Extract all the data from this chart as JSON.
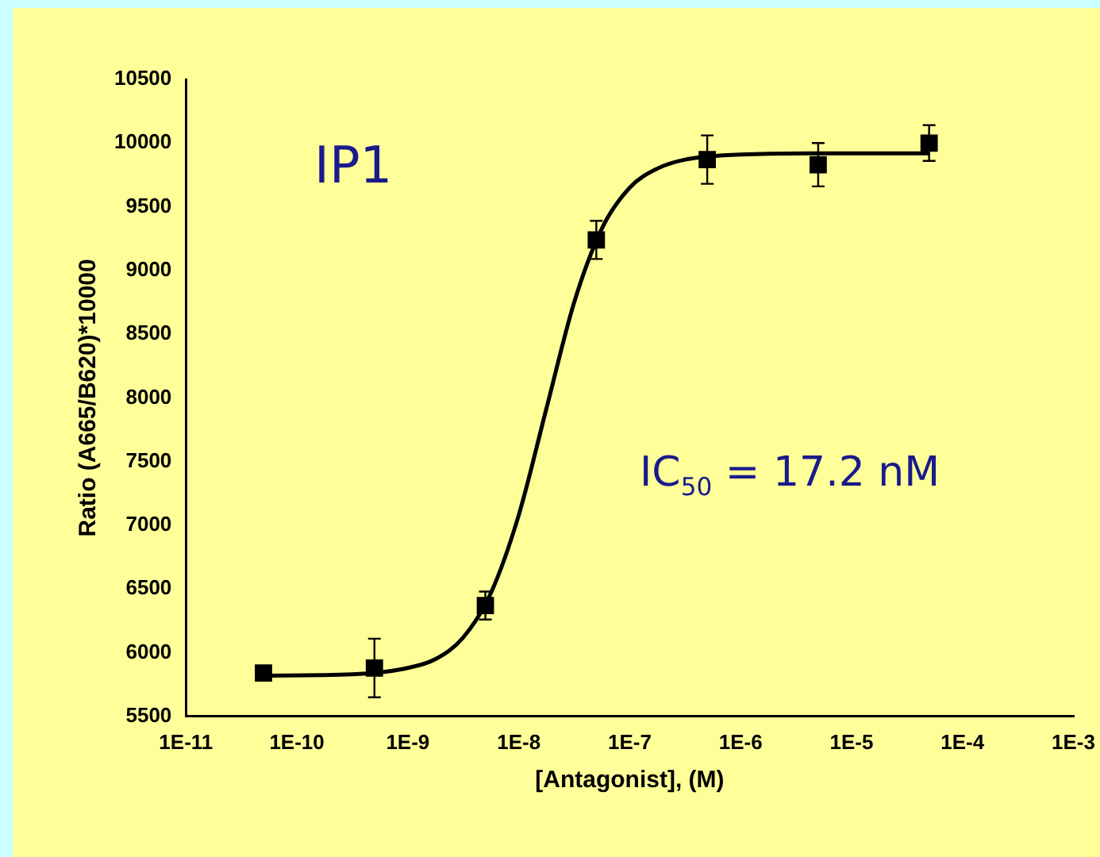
{
  "chart_data": {
    "type": "scatter",
    "xlabel": "[Antagonist], (M)",
    "ylabel": "Ratio (A665/B620)*10000",
    "annotations": [
      "IP1",
      "IC$_{50}$ = 17.2 nM"
    ],
    "log": "x",
    "grid": false,
    "legend": false,
    "marker": "square",
    "xlim": [
      1e-11,
      0.001
    ],
    "xticks": [
      {
        "value": 1e-11,
        "label": "1E-11"
      },
      {
        "value": 1e-10,
        "label": "1E-10"
      },
      {
        "value": 1e-09,
        "label": "1E-9"
      },
      {
        "value": 1e-08,
        "label": "1E-8"
      },
      {
        "value": 1e-07,
        "label": "1E-7"
      },
      {
        "value": 1e-06,
        "label": "1E-6"
      },
      {
        "value": 1e-05,
        "label": "1E-5"
      },
      {
        "value": 0.0001,
        "label": "1E-4"
      },
      {
        "value": 0.001,
        "label": "1E-3"
      }
    ],
    "ylim": [
      5500,
      10500
    ],
    "yticks": [
      5500,
      6000,
      6500,
      7000,
      7500,
      8000,
      8500,
      9000,
      9500,
      10000,
      10500
    ],
    "series": [
      {
        "color": "#000000",
        "x": [
          5e-11,
          5e-10,
          5e-09,
          5e-08,
          5e-07,
          5e-06,
          5e-05
        ],
        "values": [
          5840,
          5880,
          6370,
          9240,
          9870,
          9830,
          10000
        ],
        "errors": [
          null,
          230,
          110,
          150,
          190,
          170,
          140
        ]
      },
      {
        "type": "line",
        "color": "#000000",
        "marker": "none",
        "line_style": "solid",
        "x": [
          5e-11,
          3.16e-10,
          1e-09,
          1.78e-09,
          3.16e-09,
          5.62e-09,
          1e-08,
          1.78e-08,
          3.16e-08,
          5.62e-08,
          1e-07,
          1.78e-07,
          3.16e-07,
          1e-06,
          1e-05,
          5e-05
        ],
        "values": [
          5820,
          5830,
          5880,
          5950,
          6120,
          6470,
          7080,
          7920,
          8750,
          9330,
          9650,
          9800,
          9870,
          9910,
          9920,
          9920
        ]
      }
    ]
  }
}
